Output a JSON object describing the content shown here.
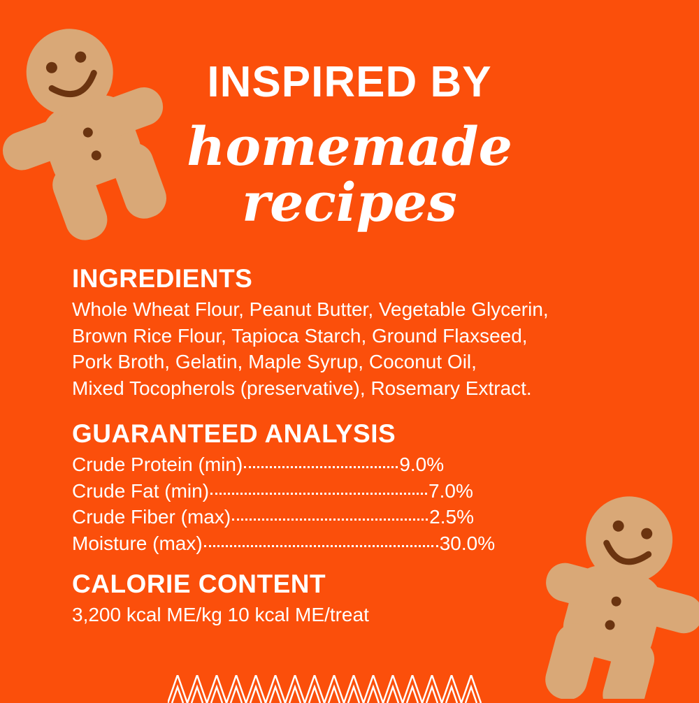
{
  "colors": {
    "background": "#FB4F0B",
    "text": "#FFFFFF",
    "cookie": "#D9A877"
  },
  "header": {
    "line1": "INSPIRED BY",
    "line2": "homemade",
    "line3": "recipes"
  },
  "ingredients": {
    "heading": "INGREDIENTS",
    "lines": [
      "Whole Wheat Flour, Peanut Butter, Vegetable Glycerin,",
      "Brown Rice Flour, Tapioca Starch, Ground Flaxseed,",
      "Pork Broth, Gelatin, Maple Syrup, Coconut Oil,",
      "Mixed Tocopherols (preservative), Rosemary Extract."
    ]
  },
  "analysis": {
    "heading": "GUARANTEED ANALYSIS",
    "rows": [
      {
        "label": "Crude Protein (min)",
        "value": "9.0%"
      },
      {
        "label": "Crude Fat (min)",
        "value": "7.0%"
      },
      {
        "label": "Crude Fiber (max)",
        "value": "2.5%"
      },
      {
        "label": "Moisture (max)",
        "value": "30.0%"
      }
    ]
  },
  "calories": {
    "heading": "CALORIE CONTENT",
    "text": "3,200 kcal ME/kg 10 kcal ME/treat"
  }
}
